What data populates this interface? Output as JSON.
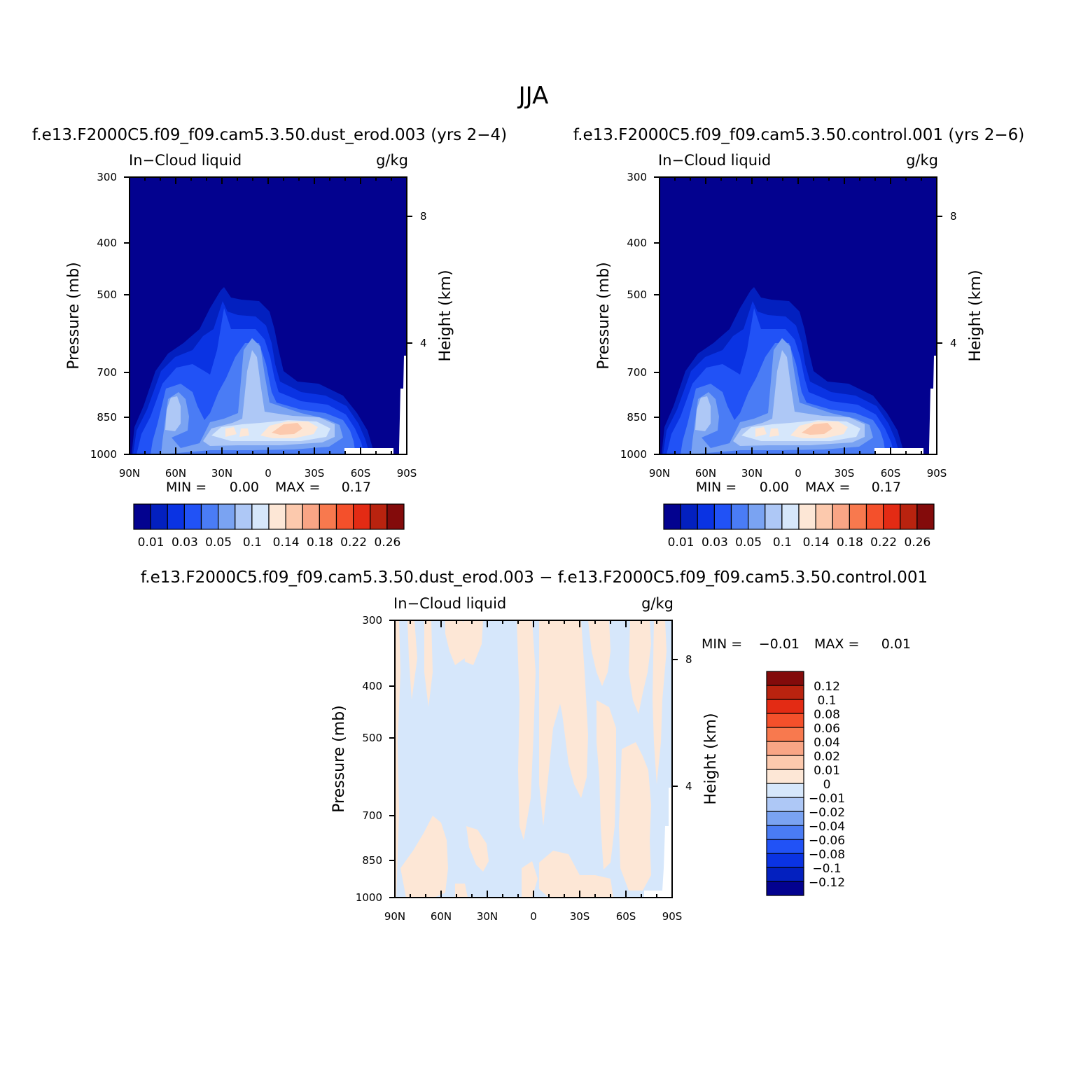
{
  "page_title": "JJA",
  "colors": {
    "seq": [
      "#03028f",
      "#0320bf",
      "#0a33e3",
      "#2152f6",
      "#4a7cf5",
      "#7aa3f2",
      "#aec8f6",
      "#d6e7fb",
      "#fde7d6",
      "#fcc9ad",
      "#f9a585",
      "#f8794e",
      "#f4502b",
      "#e32b14",
      "#b9230f",
      "#830b0b"
    ],
    "diverging": [
      "#03028f",
      "#0320bf",
      "#0a33e3",
      "#2152f6",
      "#4a7cf5",
      "#7aa3f2",
      "#aec8f6",
      "#d6e7fb",
      "#fde7d6",
      "#fcc9ad",
      "#f9a585",
      "#f8794e",
      "#f4502b",
      "#e32b14",
      "#b9230f",
      "#830b0b"
    ]
  },
  "chart_data": [
    {
      "type": "heatmap",
      "title": "f.e13.F2000C5.f09_f09.cam5.3.50.dust_erod.003 (yrs 2−4)",
      "left_label": "In−Cloud liquid",
      "right_label": "g/kg",
      "ylabel": "Pressure (mb)",
      "y2label": "Height (km)",
      "x_ticks": [
        "90N",
        "60N",
        "30N",
        "0",
        "30S",
        "60S",
        "90S"
      ],
      "y_ticks": [
        "300",
        "400",
        "500",
        "700",
        "850",
        "1000"
      ],
      "y2_ticks": [
        "8",
        "4"
      ],
      "min_label": "MIN =",
      "min_value": "0.00",
      "max_label": "MAX =",
      "max_value": "0.17",
      "colorbar_labels": [
        "0.01",
        "0.03",
        "0.05",
        "0.1",
        "0.14",
        "0.18",
        "0.22",
        "0.26"
      ]
    },
    {
      "type": "heatmap",
      "title": "f.e13.F2000C5.f09_f09.cam5.3.50.control.001 (yrs 2−6)",
      "left_label": "In−Cloud liquid",
      "right_label": "g/kg",
      "ylabel": "Pressure (mb)",
      "y2label": "Height (km)",
      "x_ticks": [
        "90N",
        "60N",
        "30N",
        "0",
        "30S",
        "60S",
        "90S"
      ],
      "y_ticks": [
        "300",
        "400",
        "500",
        "700",
        "850",
        "1000"
      ],
      "y2_ticks": [
        "8",
        "4"
      ],
      "min_label": "MIN =",
      "min_value": "0.00",
      "max_label": "MAX =",
      "max_value": "0.17",
      "colorbar_labels": [
        "0.01",
        "0.03",
        "0.05",
        "0.1",
        "0.14",
        "0.18",
        "0.22",
        "0.26"
      ]
    },
    {
      "type": "heatmap",
      "title": "f.e13.F2000C5.f09_f09.cam5.3.50.dust_erod.003 − f.e13.F2000C5.f09_f09.cam5.3.50.control.001",
      "left_label": "In−Cloud liquid",
      "right_label": "g/kg",
      "ylabel": "Pressure (mb)",
      "y2label": "Height (km)",
      "x_ticks": [
        "90N",
        "60N",
        "30N",
        "0",
        "30S",
        "60S",
        "90S"
      ],
      "y_ticks": [
        "300",
        "400",
        "500",
        "700",
        "850",
        "1000"
      ],
      "y2_ticks": [
        "8",
        "4"
      ],
      "min_label": "MIN =",
      "min_value": "−0.01",
      "max_label": "MAX =",
      "max_value": "0.01",
      "colorbar_labels": [
        "0.12",
        "0.1",
        "0.08",
        "0.06",
        "0.04",
        "0.02",
        "0.01",
        "0",
        "−0.01",
        "−0.02",
        "−0.04",
        "−0.06",
        "−0.08",
        "−0.1",
        "−0.12"
      ]
    }
  ]
}
